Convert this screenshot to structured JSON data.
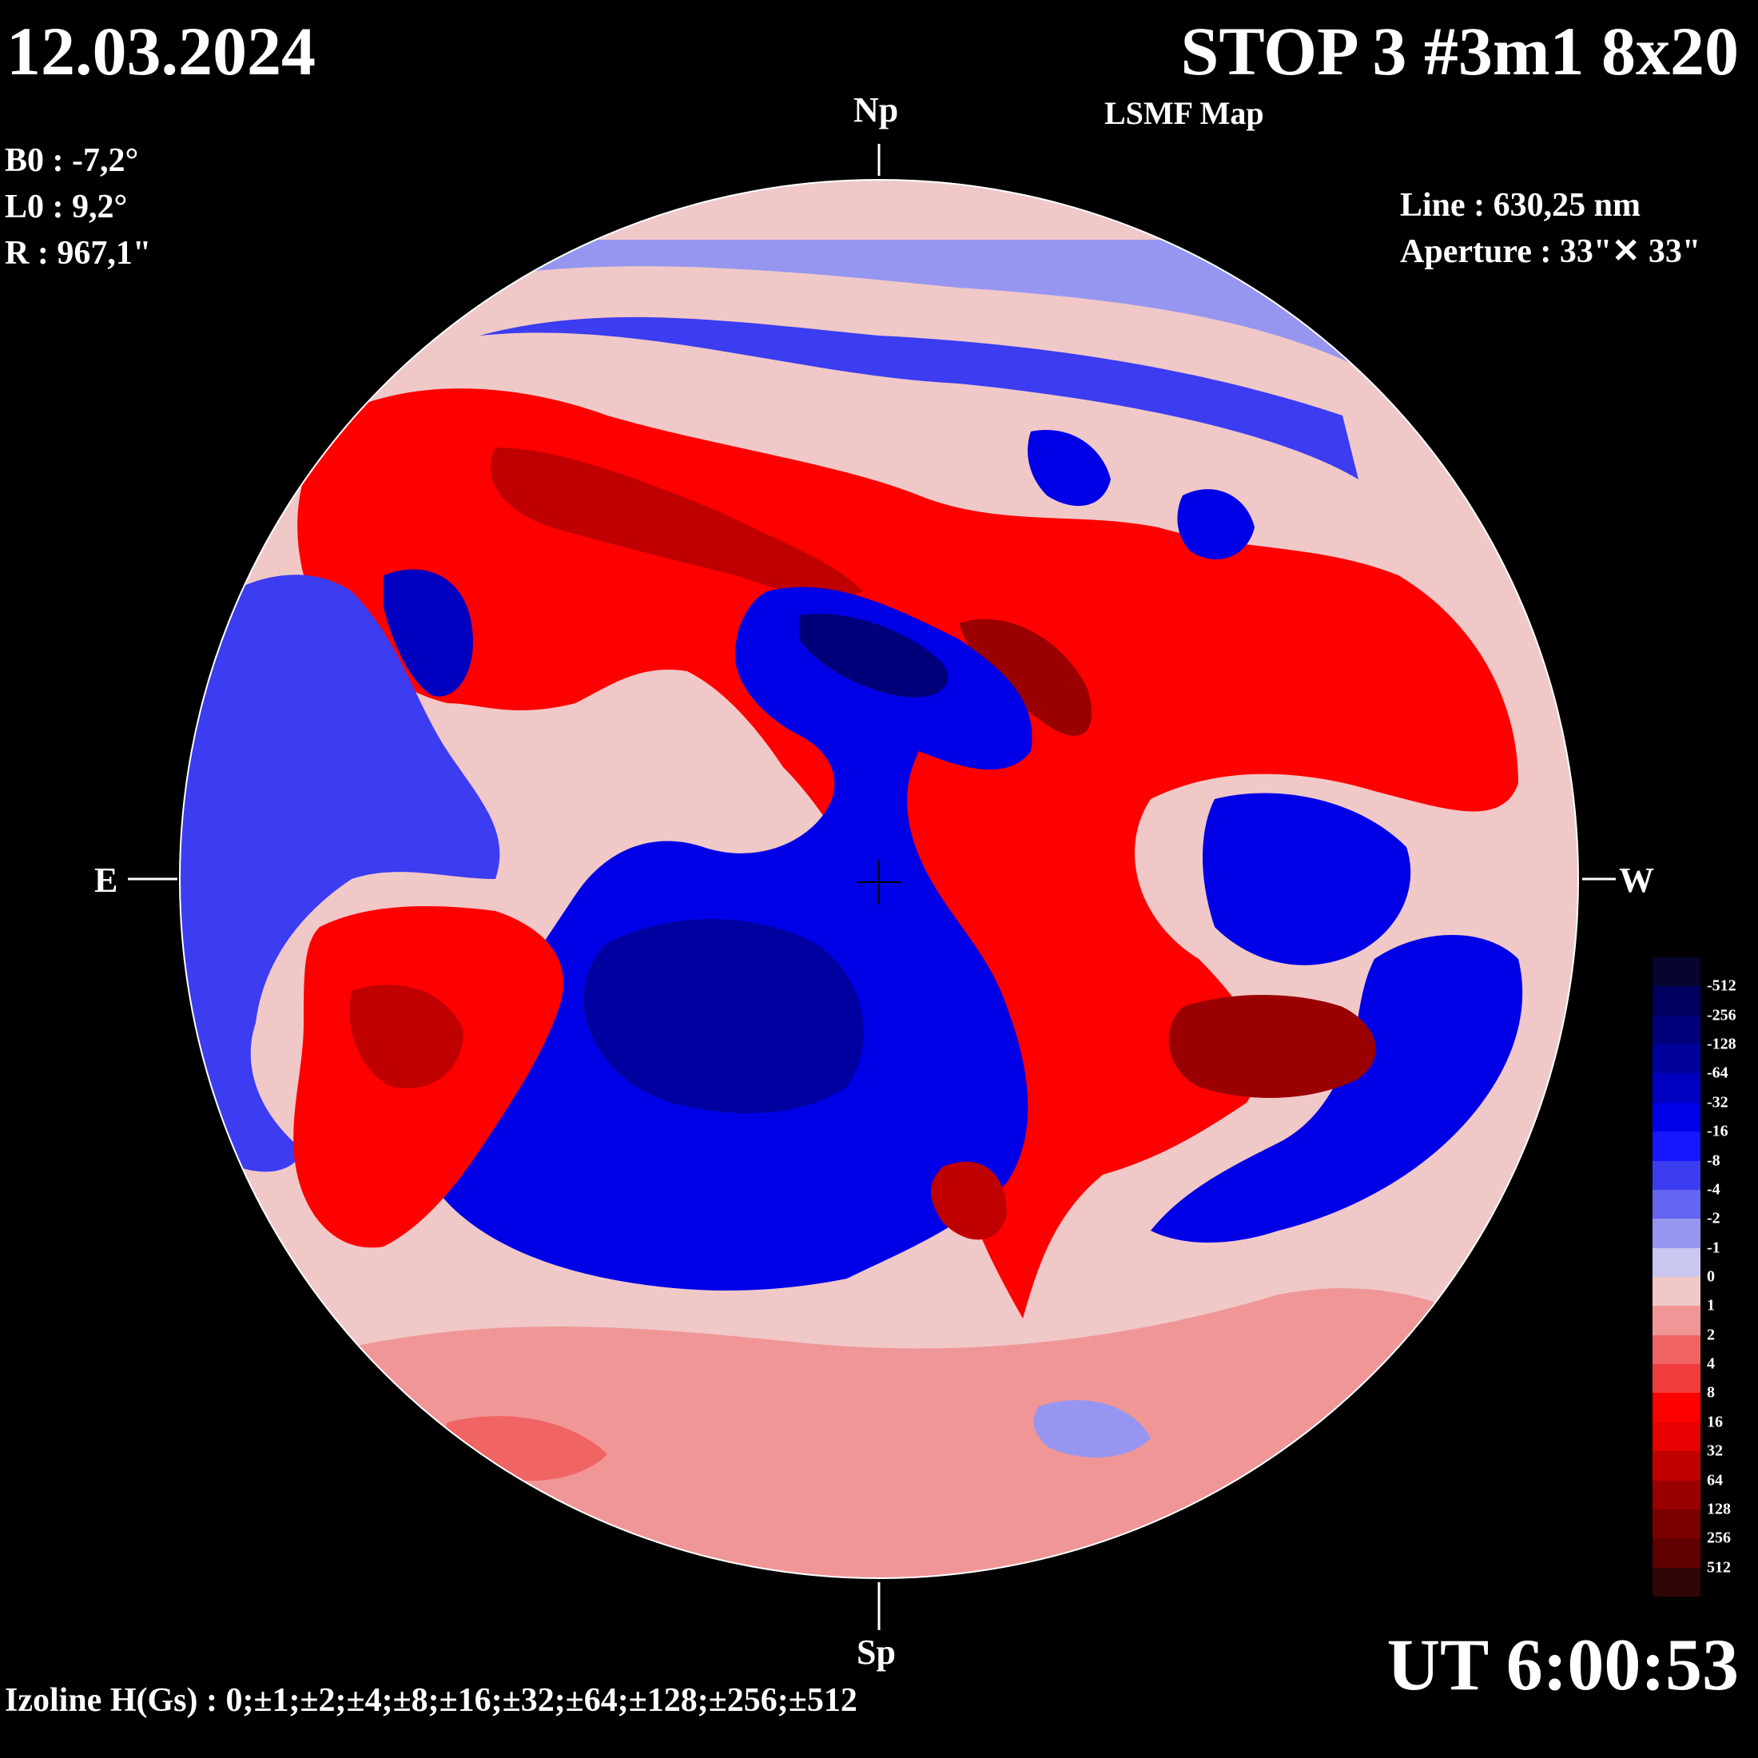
{
  "header": {
    "date": "12.03.2024",
    "title": "STOP 3 #3m1 8x20",
    "subtitle": "LSMF  Map"
  },
  "params": {
    "b0": "B0 : -7,2°",
    "l0": "L0 : 9,2°",
    "r": "R  : 967,1\""
  },
  "instrument": {
    "line": "Line :  630,25 nm",
    "aperture": "Aperture : 33\"✕ 33\""
  },
  "directions": {
    "north": "Np",
    "south": "Sp",
    "east": "E",
    "west": "W"
  },
  "time": "UT 6:00:53",
  "izoline": "Izoline H(Gs) : 0;±1;±2;±4;±8;±16;±32;±64;±128;±256;±512",
  "legend": {
    "labels": [
      "-512",
      "-256",
      "-128",
      "-64",
      "-32",
      "-16",
      "-8",
      "-4",
      "-2",
      "-1",
      "0",
      "1",
      "2",
      "4",
      "8",
      "16",
      "32",
      "64",
      "128",
      "256",
      "512"
    ],
    "colors": [
      "#050530",
      "#000060",
      "#00007a",
      "#00009a",
      "#0000c0",
      "#0000e6",
      "#1616ff",
      "#3c3cf0",
      "#6464f0",
      "#9696f0",
      "#c8c8f0",
      "#f0c8c8",
      "#f09696",
      "#f06464",
      "#f03c3c",
      "#ff0000",
      "#e60000",
      "#c00000",
      "#9a0000",
      "#7a0000",
      "#600000",
      "#300505"
    ]
  },
  "colors": {
    "background": "#000000",
    "positive": "#e60000",
    "negative": "#0000e6",
    "zero_line": "#ffffff"
  }
}
